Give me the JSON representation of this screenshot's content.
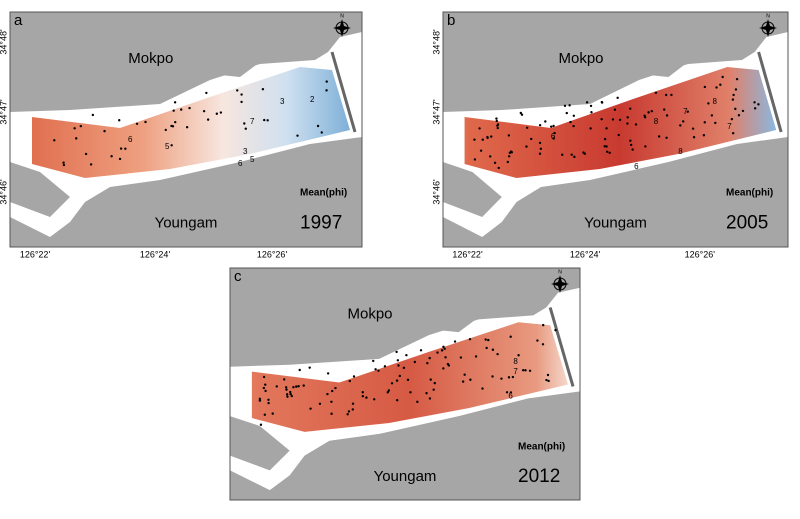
{
  "panels": [
    {
      "label": "a",
      "north": "N",
      "places": [
        "Mokpo",
        "Youngam"
      ],
      "legend": "Mean(phi)",
      "year": "1997",
      "lat_labels": [
        "34°48'",
        "34°47'",
        "34°46'"
      ],
      "lon_labels": [
        "126°22'",
        "126°24'",
        "126°26'"
      ],
      "contour_labels": [
        "6",
        "5",
        "3",
        "5",
        "6",
        "7",
        "3",
        "2"
      ]
    },
    {
      "label": "b",
      "north": "N",
      "places": [
        "Mokpo",
        "Youngam"
      ],
      "legend": "Mean(phi)",
      "year": "2005",
      "lat_labels": [
        "34°48'",
        "34°47'",
        "34°46'"
      ],
      "lon_labels": [
        "126°22'",
        "126°24'",
        "126°26'"
      ],
      "contour_labels": [
        "6",
        "8",
        "7",
        "8",
        "6",
        "8",
        "7"
      ]
    },
    {
      "label": "c",
      "north": "N",
      "places": [
        "Mokpo",
        "Youngam"
      ],
      "legend": "Mean(phi)",
      "year": "2012",
      "lat_labels": [],
      "lon_labels": [],
      "contour_labels": [
        "8",
        "7",
        "6"
      ]
    }
  ]
}
